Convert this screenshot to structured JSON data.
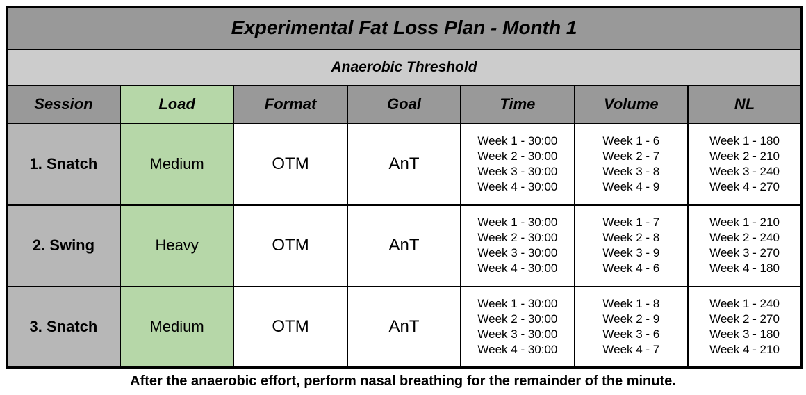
{
  "title": "Experimental Fat Loss Plan - Month 1",
  "subtitle": "Anaerobic Threshold",
  "footer": "After the anaerobic effort, perform nasal breathing for the remainder of the minute.",
  "columns": [
    "Session",
    "Load",
    "Format",
    "Goal",
    "Time",
    "Volume",
    "NL"
  ],
  "colors": {
    "header_gray": "#999999",
    "subtitle_gray": "#cccccc",
    "session_gray": "#b7b7b7",
    "load_green": "#b6d7a8",
    "border_black": "#000000",
    "page_bg": "#ffffff"
  },
  "rows": [
    {
      "session": "1. Snatch",
      "load": "Medium",
      "format": "OTM",
      "goal": "AnT",
      "time": [
        "Week 1 - 30:00",
        "Week 2 - 30:00",
        "Week 3 - 30:00",
        "Week 4 - 30:00"
      ],
      "volume": [
        "Week 1 - 6",
        "Week 2 - 7",
        "Week 3 - 8",
        "Week 4 - 9"
      ],
      "nl": [
        "Week 1 - 180",
        "Week 2 - 210",
        "Week 3 - 240",
        "Week 4 - 270"
      ]
    },
    {
      "session": "2. Swing",
      "load": "Heavy",
      "format": "OTM",
      "goal": "AnT",
      "time": [
        "Week 1 - 30:00",
        "Week 2 - 30:00",
        "Week 3 - 30:00",
        "Week 4 - 30:00"
      ],
      "volume": [
        "Week 1 - 7",
        "Week 2 - 8",
        "Week 3 - 9",
        "Week 4 - 6"
      ],
      "nl": [
        "Week 1 - 210",
        "Week 2 - 240",
        "Week 3 - 270",
        "Week 4 - 180"
      ]
    },
    {
      "session": "3. Snatch",
      "load": "Medium",
      "format": "OTM",
      "goal": "AnT",
      "time": [
        "Week 1 - 30:00",
        "Week 2 - 30:00",
        "Week 3 - 30:00",
        "Week 4 - 30:00"
      ],
      "volume": [
        "Week 1 - 8",
        "Week 2 - 9",
        "Week 3 - 6",
        "Week 4 - 7"
      ],
      "nl": [
        "Week 1 - 240",
        "Week 2 - 270",
        "Week 3 - 180",
        "Week 4 - 210"
      ]
    }
  ]
}
